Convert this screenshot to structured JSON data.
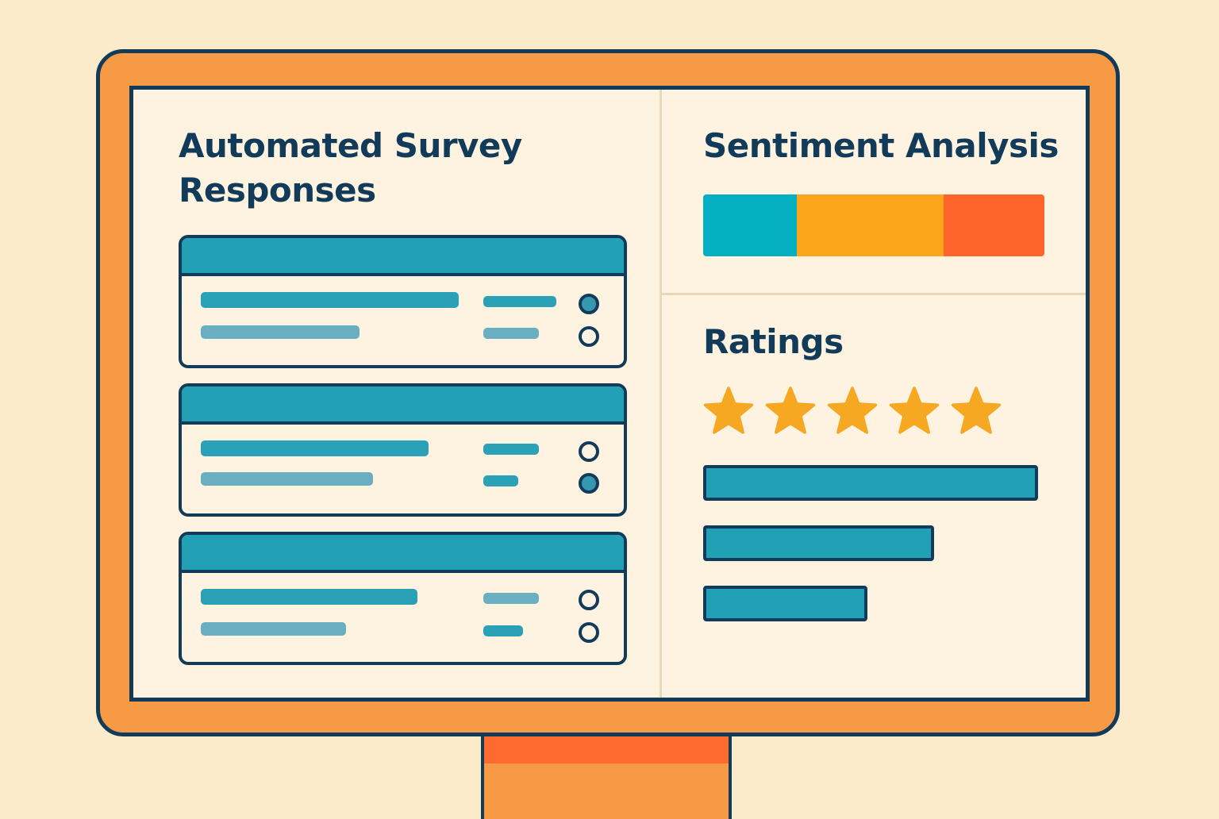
{
  "colors": {
    "background": "#FCEBCB",
    "bezel": "#F79A45",
    "outline": "#123B5A",
    "screen": "#FDF3E0",
    "teal": "#22A0B6",
    "star": "#F7A823"
  },
  "survey": {
    "title_line1": "Automated Survey",
    "title_line2": "Responses",
    "cards": [
      {
        "radios": [
          true,
          false
        ]
      },
      {
        "radios": [
          false,
          true
        ]
      },
      {
        "radios": [
          false,
          false
        ]
      }
    ]
  },
  "sentiment": {
    "title": "Sentiment Analysis",
    "segments": [
      {
        "share": 0.275,
        "color": "#05AFC2"
      },
      {
        "share": 0.43,
        "color": "#FCA61C"
      },
      {
        "share": 0.295,
        "color": "#FF652B"
      }
    ]
  },
  "ratings": {
    "title": "Ratings",
    "stars": 5,
    "star_icon": "star-icon",
    "bars": [
      1.0,
      0.69,
      0.49
    ]
  }
}
